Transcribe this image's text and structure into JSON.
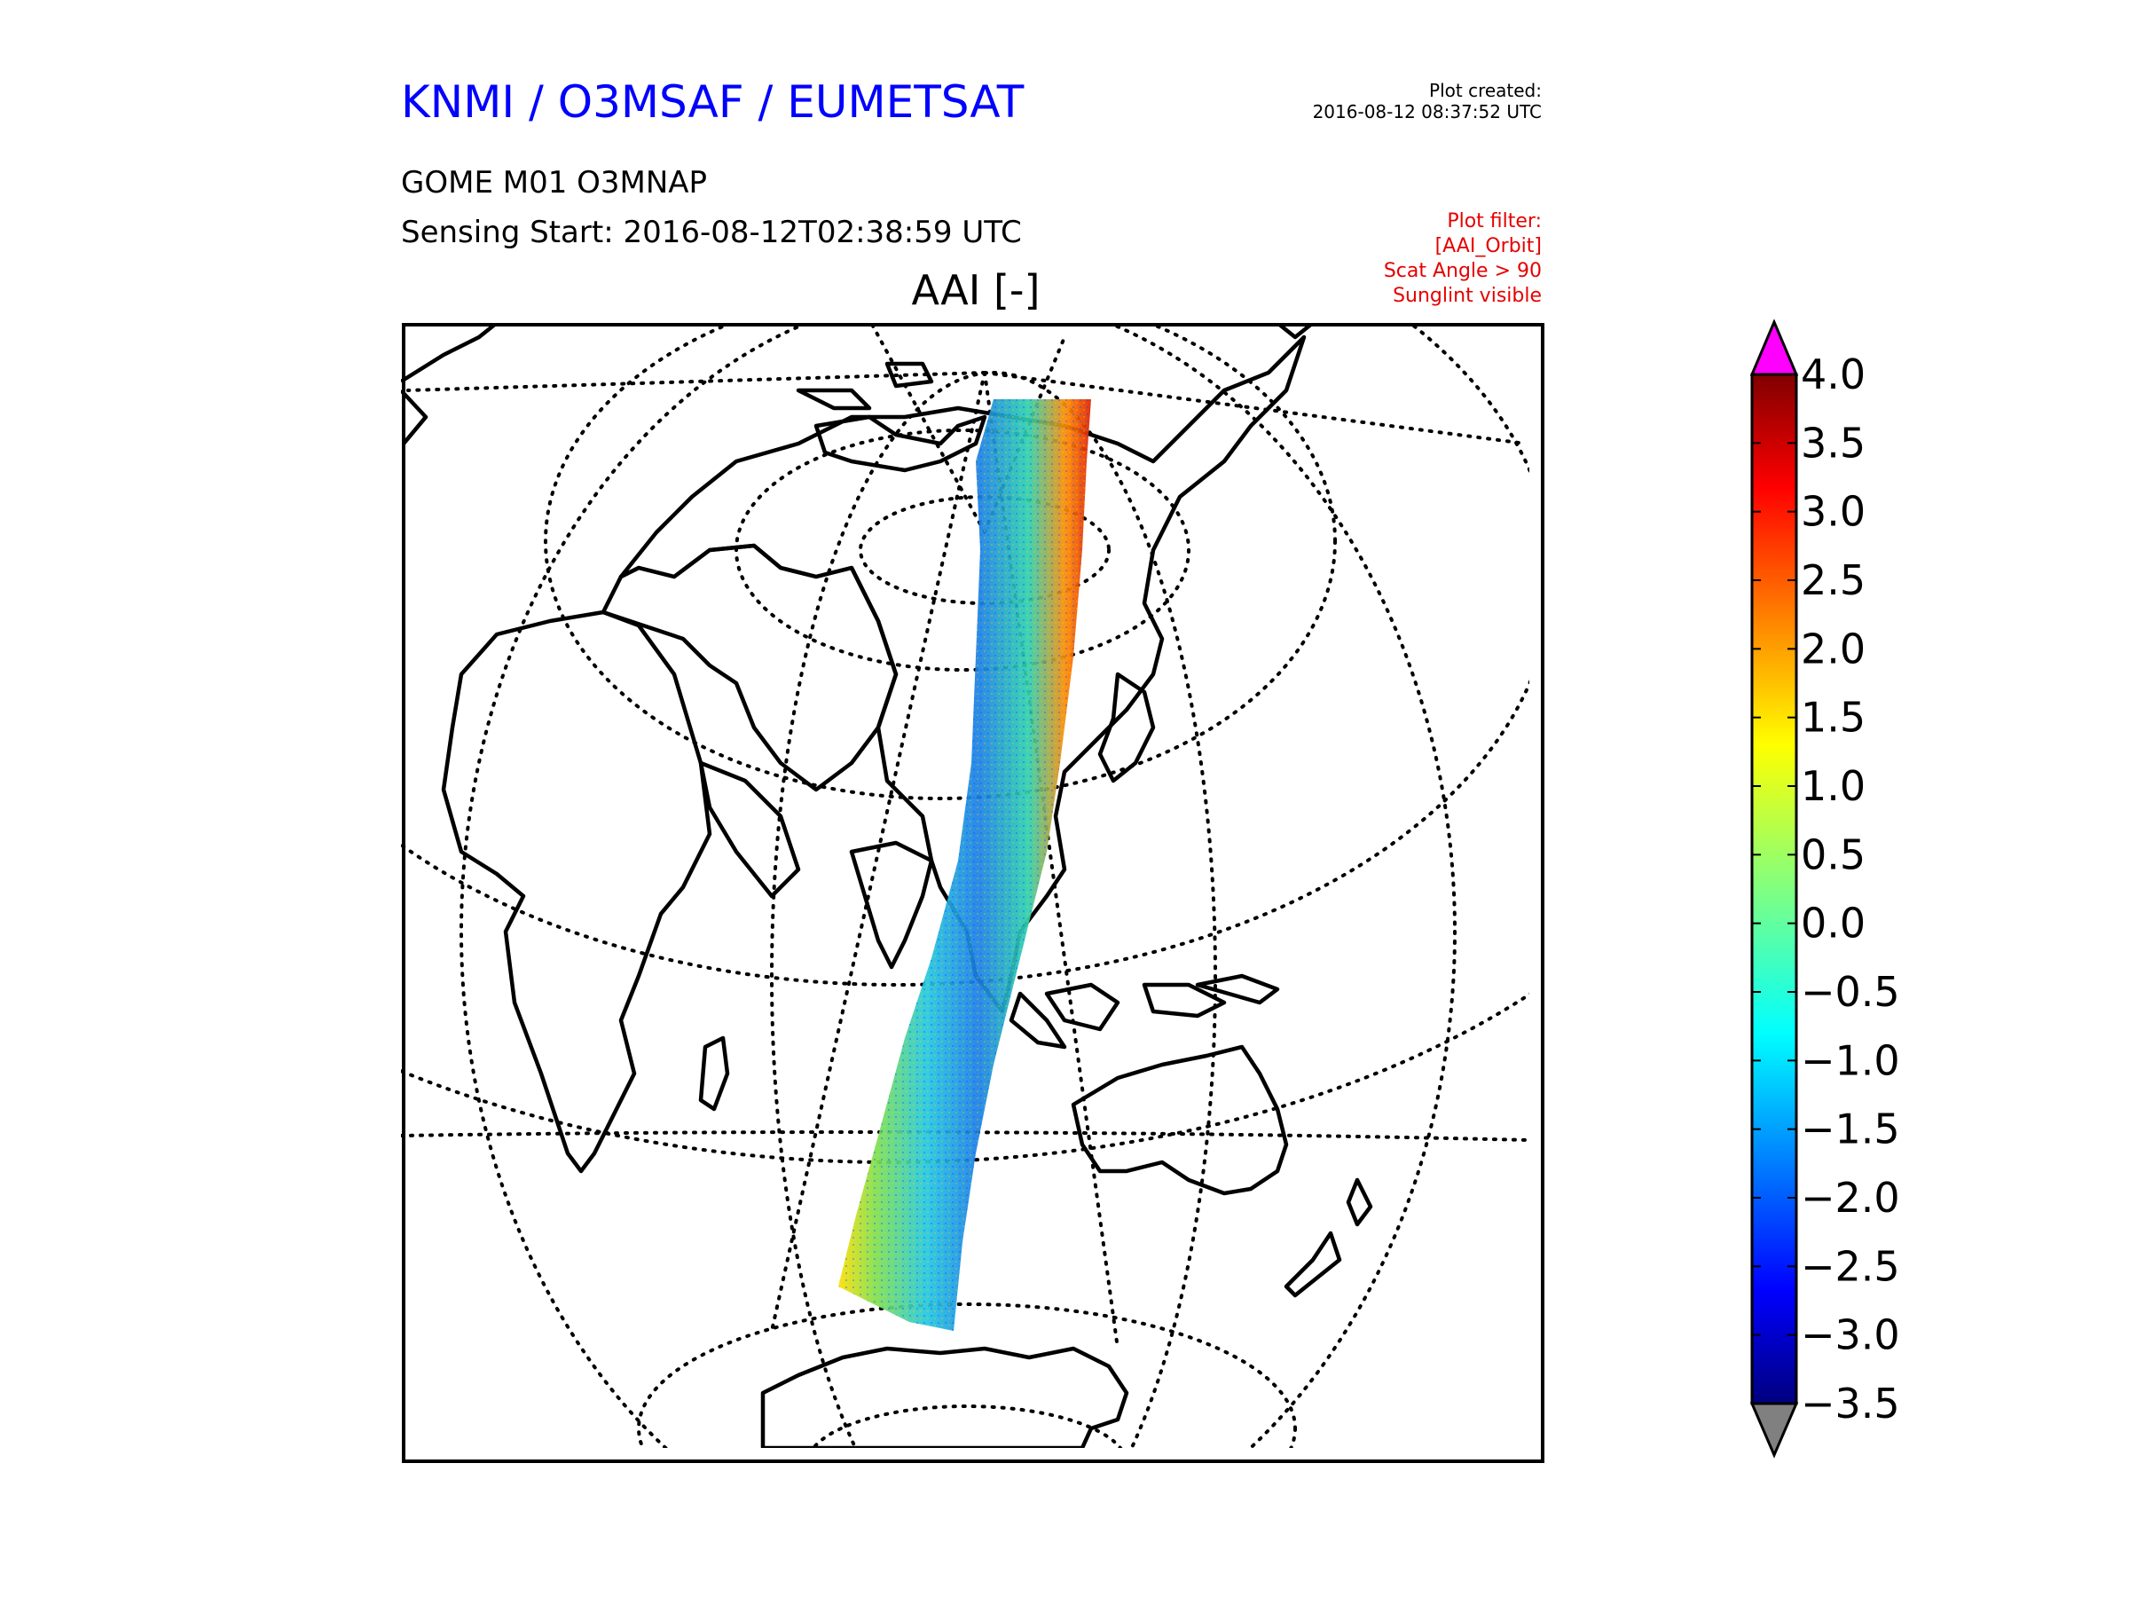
{
  "header": {
    "org_title": "KNMI / O3MSAF / EUMETSAT",
    "product": "GOME M01 O3MNAP",
    "sensing_start": "Sensing Start: 2016-08-12T02:38:59 UTC",
    "map_title": "AAI [-]"
  },
  "meta": {
    "plot_created_label": "Plot created:",
    "plot_created_value": "2016-08-12 08:37:52 UTC",
    "filter_label": "Plot filter:",
    "filter_lines": [
      "[AAI_Orbit]",
      "Scat Angle > 90",
      "Sunglint visible"
    ]
  },
  "colorbar": {
    "min": -3.5,
    "max": 4.0,
    "ticks": [
      "4.0",
      "3.5",
      "3.0",
      "2.5",
      "2.0",
      "1.5",
      "1.0",
      "0.5",
      "0.0",
      "−0.5",
      "−1.0",
      "−1.5",
      "−2.0",
      "−2.5",
      "−3.0",
      "−3.5"
    ],
    "over_color": "#ff00ff",
    "under_color": "#808080",
    "colormap": "jet"
  }
}
